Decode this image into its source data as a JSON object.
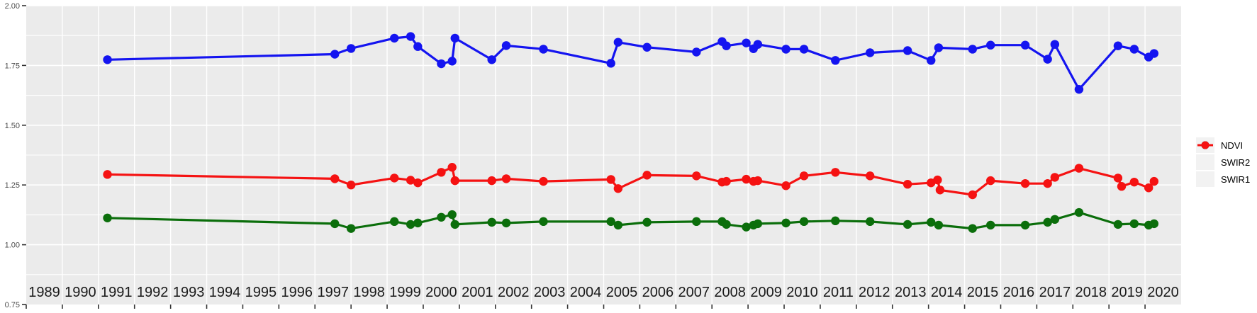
{
  "chart_data": {
    "type": "line",
    "title": "",
    "xlabel": "",
    "ylabel": "",
    "xlim": [
      1989,
      2021
    ],
    "ylim": [
      0.75,
      2.0
    ],
    "grid": true,
    "legend_position": "right",
    "x_tick_labels": [
      "1989",
      "1990",
      "1991",
      "1992",
      "1993",
      "1994",
      "1995",
      "1996",
      "1997",
      "1998",
      "1999",
      "2000",
      "2001",
      "2002",
      "2003",
      "2004",
      "2005",
      "2006",
      "2007",
      "2008",
      "2009",
      "2010",
      "2011",
      "2012",
      "2013",
      "2014",
      "2015",
      "2016",
      "2017",
      "2018",
      "2019",
      "2020"
    ],
    "y_tick_labels": [
      "0.75",
      "1.00",
      "1.25",
      "1.50",
      "1.75",
      "2.00"
    ],
    "y_major_gridlines": [
      1.0,
      1.25,
      1.5,
      1.75,
      2.0
    ],
    "y_minor_gridlines": [
      0.875,
      1.125,
      1.375,
      1.625,
      1.875
    ],
    "series": [
      {
        "name": "NDVI",
        "color": "#1414f0",
        "points": [
          [
            1991.25,
            1.774
          ],
          [
            1997.55,
            1.797
          ],
          [
            1998.0,
            1.821
          ],
          [
            1999.2,
            1.864
          ],
          [
            1999.65,
            1.871
          ],
          [
            1999.85,
            1.829
          ],
          [
            2000.5,
            1.757
          ],
          [
            2000.8,
            1.768
          ],
          [
            2000.88,
            1.864
          ],
          [
            2001.9,
            1.774
          ],
          [
            2002.3,
            1.833
          ],
          [
            2003.33,
            1.818
          ],
          [
            2005.2,
            1.759
          ],
          [
            2005.4,
            1.847
          ],
          [
            2006.2,
            1.826
          ],
          [
            2007.57,
            1.806
          ],
          [
            2008.28,
            1.85
          ],
          [
            2008.4,
            1.832
          ],
          [
            2008.95,
            1.844
          ],
          [
            2009.15,
            1.82
          ],
          [
            2009.27,
            1.838
          ],
          [
            2010.05,
            1.818
          ],
          [
            2010.55,
            1.818
          ],
          [
            2011.42,
            1.771
          ],
          [
            2012.38,
            1.803
          ],
          [
            2013.42,
            1.812
          ],
          [
            2014.07,
            1.771
          ],
          [
            2014.28,
            1.824
          ],
          [
            2015.22,
            1.818
          ],
          [
            2015.72,
            1.835
          ],
          [
            2016.68,
            1.835
          ],
          [
            2017.3,
            1.776
          ],
          [
            2017.5,
            1.838
          ],
          [
            2018.17,
            1.65
          ],
          [
            2019.25,
            1.832
          ],
          [
            2019.7,
            1.818
          ],
          [
            2020.1,
            1.785
          ],
          [
            2020.25,
            1.8
          ]
        ]
      },
      {
        "name": "SWIR2",
        "color": "#0b6e0b",
        "points": [
          [
            1991.25,
            1.112
          ],
          [
            1997.55,
            1.088
          ],
          [
            1998.0,
            1.068
          ],
          [
            1999.2,
            1.097
          ],
          [
            1999.65,
            1.085
          ],
          [
            1999.85,
            1.091
          ],
          [
            2000.5,
            1.115
          ],
          [
            2000.8,
            1.126
          ],
          [
            2000.88,
            1.085
          ],
          [
            2001.9,
            1.094
          ],
          [
            2002.3,
            1.091
          ],
          [
            2003.33,
            1.097
          ],
          [
            2005.2,
            1.097
          ],
          [
            2005.4,
            1.082
          ],
          [
            2006.2,
            1.094
          ],
          [
            2007.57,
            1.097
          ],
          [
            2008.28,
            1.097
          ],
          [
            2008.4,
            1.085
          ],
          [
            2008.95,
            1.074
          ],
          [
            2009.15,
            1.082
          ],
          [
            2009.27,
            1.088
          ],
          [
            2010.05,
            1.091
          ],
          [
            2010.55,
            1.097
          ],
          [
            2011.42,
            1.1
          ],
          [
            2012.38,
            1.097
          ],
          [
            2013.42,
            1.085
          ],
          [
            2014.07,
            1.094
          ],
          [
            2014.28,
            1.082
          ],
          [
            2015.22,
            1.068
          ],
          [
            2015.72,
            1.082
          ],
          [
            2016.68,
            1.082
          ],
          [
            2017.3,
            1.094
          ],
          [
            2017.5,
            1.106
          ],
          [
            2018.17,
            1.135
          ],
          [
            2019.25,
            1.085
          ],
          [
            2019.7,
            1.088
          ],
          [
            2020.1,
            1.082
          ],
          [
            2020.25,
            1.088
          ]
        ]
      },
      {
        "name": "SWIR1",
        "color": "#f51212",
        "points": [
          [
            1991.25,
            1.294
          ],
          [
            1997.55,
            1.276
          ],
          [
            1998.0,
            1.25
          ],
          [
            1999.2,
            1.279
          ],
          [
            1999.65,
            1.27
          ],
          [
            1999.85,
            1.259
          ],
          [
            2000.5,
            1.303
          ],
          [
            2000.8,
            1.324
          ],
          [
            2000.88,
            1.268
          ],
          [
            2001.9,
            1.268
          ],
          [
            2002.3,
            1.276
          ],
          [
            2003.33,
            1.265
          ],
          [
            2005.2,
            1.273
          ],
          [
            2005.4,
            1.235
          ],
          [
            2006.2,
            1.291
          ],
          [
            2007.57,
            1.288
          ],
          [
            2008.28,
            1.262
          ],
          [
            2008.4,
            1.265
          ],
          [
            2008.95,
            1.274
          ],
          [
            2009.15,
            1.265
          ],
          [
            2009.27,
            1.268
          ],
          [
            2010.05,
            1.247
          ],
          [
            2010.55,
            1.288
          ],
          [
            2011.42,
            1.303
          ],
          [
            2012.38,
            1.288
          ],
          [
            2013.42,
            1.253
          ],
          [
            2014.07,
            1.259
          ],
          [
            2014.25,
            1.271
          ],
          [
            2014.32,
            1.229
          ],
          [
            2015.22,
            1.209
          ],
          [
            2015.72,
            1.268
          ],
          [
            2016.68,
            1.256
          ],
          [
            2017.3,
            1.256
          ],
          [
            2017.5,
            1.282
          ],
          [
            2018.17,
            1.32
          ],
          [
            2019.25,
            1.279
          ],
          [
            2019.35,
            1.244
          ],
          [
            2019.7,
            1.262
          ],
          [
            2020.1,
            1.238
          ],
          [
            2020.25,
            1.265
          ]
        ]
      }
    ]
  },
  "layout_colors": {
    "panel_background": "#ebebeb",
    "gridline": "#ffffff",
    "x_label_color": "#1a1a1a",
    "y_label_color": "#4d4d4d",
    "tick_color": "#333333",
    "legend_key_background": "#f2f2f2",
    "legend_text_color": "#000000"
  },
  "legend": {
    "items": [
      {
        "label": "NDVI",
        "color": "#1414f0"
      },
      {
        "label": "SWIR2",
        "color": "#0b6e0b"
      },
      {
        "label": "SWIR1",
        "color": "#f51212"
      }
    ]
  }
}
